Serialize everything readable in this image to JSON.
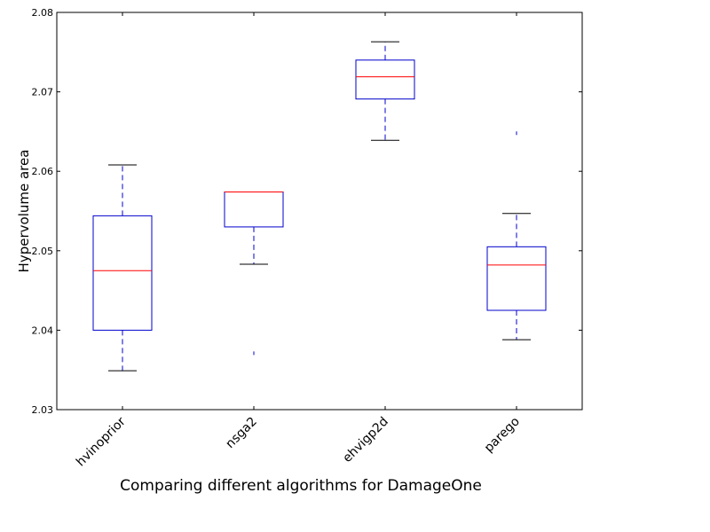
{
  "chart_data": {
    "type": "box",
    "title": "Comparing different algorithms for DamageOne",
    "xlabel": "",
    "ylabel": "Hypervolume area",
    "ylim": [
      2.03,
      2.08
    ],
    "yticks": [
      "2.03",
      "2.04",
      "2.05",
      "2.06",
      "2.07",
      "2.08"
    ],
    "grid": false,
    "categories": [
      "hvinoprior",
      "nsga2",
      "ehvigp2d",
      "parego"
    ],
    "boxes": [
      {
        "name": "hvinoprior",
        "whisker_low": 2.0349,
        "q1": 2.04,
        "median": 2.0475,
        "q3": 2.0544,
        "whisker_high": 2.0608,
        "outliers": []
      },
      {
        "name": "nsga2",
        "whisker_low": 2.0483,
        "q1": 2.053,
        "median": 2.0574,
        "q3": 2.0574,
        "whisker_high": 2.0574,
        "outliers": [
          2.0371
        ]
      },
      {
        "name": "ehvigp2d",
        "whisker_low": 2.0639,
        "q1": 2.0691,
        "median": 2.0719,
        "q3": 2.074,
        "whisker_high": 2.0763,
        "outliers": []
      },
      {
        "name": "parego",
        "whisker_low": 2.0388,
        "q1": 2.0425,
        "median": 2.0482,
        "q3": 2.0505,
        "whisker_high": 2.0547,
        "outliers": [
          2.0648
        ]
      }
    ],
    "colors": {
      "box": "#0000cc",
      "median": "#ff0000",
      "whisker": "#0000cc",
      "cap": "#000000",
      "outlier": "#0000cc"
    }
  }
}
